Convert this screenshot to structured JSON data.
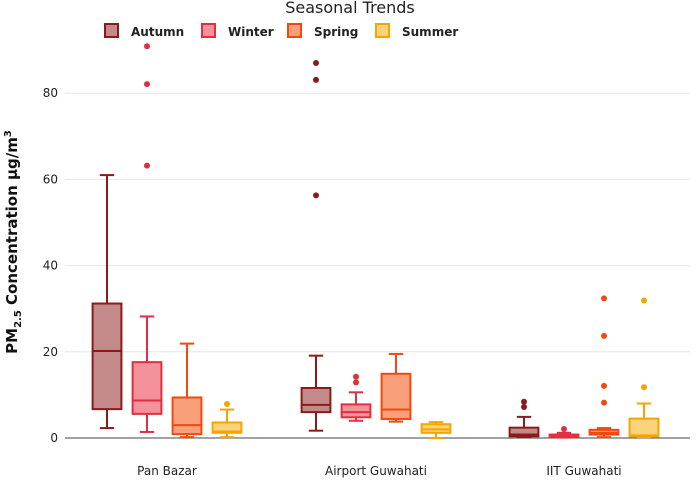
{
  "chart_data": {
    "type": "box",
    "title": "Seasonal Trends",
    "ylabel_main": "PM",
    "ylabel_sub": "2.5",
    "ylabel_rest": " Concentration μg/m",
    "ylabel_sup": "3",
    "xlabel": "",
    "ylim": [
      0,
      92
    ],
    "yticks": [
      0,
      20,
      40,
      60,
      80
    ],
    "legend_position": "top",
    "categories": [
      "Pan Bazar",
      "Airport Guwahati",
      "IIT Guwahati"
    ],
    "series": [
      {
        "name": "Autumn",
        "stroke": "#8B1A1A",
        "fill": "#C48A8A",
        "boxes": [
          {
            "min": 2.3,
            "q1": 6.7,
            "median": 20.2,
            "q3": 31.2,
            "max": 61.0,
            "outliers": []
          },
          {
            "min": 1.7,
            "q1": 6.0,
            "median": 7.7,
            "q3": 11.6,
            "max": 19.1,
            "outliers": [
              56.3,
              83.1,
              87.0
            ]
          },
          {
            "min": 0.2,
            "q1": 0.4,
            "median": 0.8,
            "q3": 2.4,
            "max": 4.9,
            "outliers": [
              7.2,
              8.4
            ]
          }
        ]
      },
      {
        "name": "Winter",
        "stroke": "#E03040",
        "fill": "#F4919A",
        "boxes": [
          {
            "min": 1.4,
            "q1": 5.6,
            "median": 8.7,
            "q3": 17.6,
            "max": 28.2,
            "outliers": [
              63.2,
              82.1,
              90.9
            ]
          },
          {
            "min": 4.0,
            "q1": 4.8,
            "median": 6.0,
            "q3": 7.8,
            "max": 10.6,
            "outliers": [
              12.9,
              14.2
            ]
          },
          {
            "min": 0.1,
            "q1": 0.2,
            "median": 0.4,
            "q3": 0.8,
            "max": 1.2,
            "outliers": [
              2.1
            ]
          }
        ]
      },
      {
        "name": "Spring",
        "stroke": "#F04A10",
        "fill": "#F9A07A",
        "boxes": [
          {
            "min": 0.2,
            "q1": 0.9,
            "median": 3.0,
            "q3": 9.4,
            "max": 21.9,
            "outliers": []
          },
          {
            "min": 3.8,
            "q1": 4.4,
            "median": 6.6,
            "q3": 14.9,
            "max": 19.5,
            "outliers": []
          },
          {
            "min": 0.2,
            "q1": 0.8,
            "median": 1.2,
            "q3": 1.9,
            "max": 2.3,
            "outliers": [
              8.2,
              12.1,
              23.7,
              32.4
            ]
          }
        ]
      },
      {
        "name": "Summer",
        "stroke": "#F5A400",
        "fill": "#FBD37A",
        "boxes": [
          {
            "min": 0.2,
            "q1": 1.2,
            "median": 1.5,
            "q3": 3.6,
            "max": 6.6,
            "outliers": [
              7.9
            ]
          },
          {
            "min": 0.0,
            "q1": 1.2,
            "median": 2.0,
            "q3": 3.2,
            "max": 3.7,
            "outliers": []
          },
          {
            "min": 0.2,
            "q1": 0.4,
            "median": 0.6,
            "q3": 4.5,
            "max": 8.0,
            "outliers": [
              11.8,
              31.9
            ]
          }
        ]
      }
    ]
  }
}
